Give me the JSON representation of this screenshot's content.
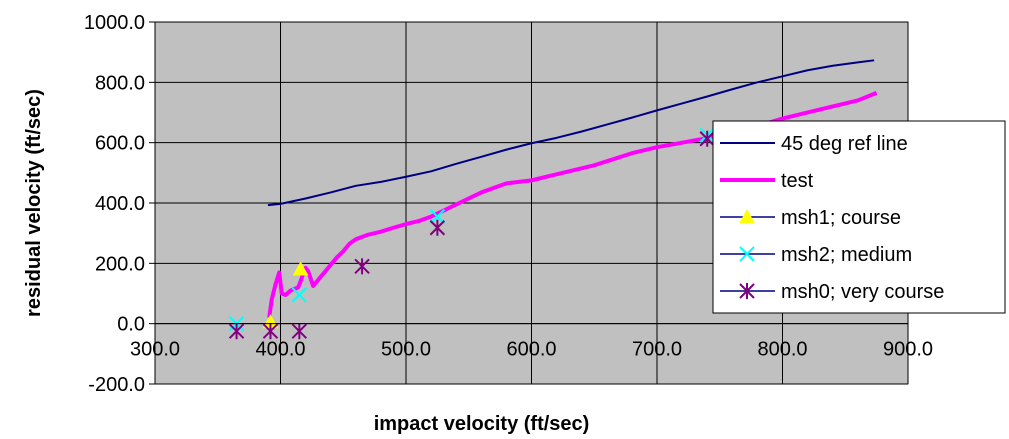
{
  "chart_data": {
    "type": "line",
    "title": "",
    "xlabel": "impact velocity (ft/sec)",
    "ylabel": "residual velocity (ft/sec)",
    "xlim": [
      300,
      900
    ],
    "ylim": [
      -200,
      1000
    ],
    "x_ticks": [
      "300.0",
      "400.0",
      "500.0",
      "600.0",
      "700.0",
      "800.0",
      "900.0"
    ],
    "y_ticks": [
      "-200.0",
      "0.0",
      "200.0",
      "400.0",
      "600.0",
      "800.0",
      "1000.0"
    ],
    "grid": true,
    "plot_background": "#C0C0C0",
    "legend_position": "right",
    "series": [
      {
        "name": "45 deg ref line",
        "style": "line",
        "color": "#000080",
        "x": [
          390,
          400,
          420,
          440,
          460,
          480,
          500,
          520,
          540,
          560,
          580,
          600,
          620,
          640,
          660,
          680,
          700,
          720,
          740,
          760,
          780,
          800,
          820,
          840,
          860,
          873
        ],
        "y": [
          393,
          397,
          415,
          435,
          457,
          470,
          487,
          505,
          530,
          553,
          577,
          598,
          616,
          637,
          660,
          683,
          707,
          730,
          753,
          777,
          800,
          820,
          840,
          855,
          866,
          873
        ]
      },
      {
        "name": "test",
        "style": "line",
        "color": "#FF00FF",
        "x": [
          391,
          393,
          396,
          399,
          401,
          404,
          408,
          411,
          414,
          416,
          418,
          420,
          422,
          424,
          426,
          428,
          431,
          434,
          437,
          440,
          445,
          450,
          455,
          460,
          470,
          480,
          490,
          500,
          510,
          520,
          530,
          540,
          560,
          580,
          600,
          620,
          650,
          680,
          700,
          720,
          740,
          760,
          780,
          800,
          830,
          860,
          875
        ],
        "y": [
          20,
          80,
          130,
          170,
          100,
          95,
          110,
          115,
          120,
          140,
          165,
          185,
          175,
          150,
          125,
          135,
          150,
          165,
          180,
          195,
          220,
          240,
          265,
          280,
          295,
          305,
          318,
          330,
          340,
          355,
          375,
          395,
          435,
          465,
          475,
          495,
          525,
          565,
          585,
          600,
          615,
          635,
          655,
          680,
          710,
          740,
          765
        ]
      },
      {
        "name": "msh1; course",
        "style": "marker",
        "marker": "triangle",
        "color": "#FFFF00",
        "x": [
          392,
          416
        ],
        "y": [
          5,
          180
        ]
      },
      {
        "name": "msh2; medium",
        "style": "marker",
        "marker": "x",
        "color": "#00FFFF",
        "x": [
          365,
          415,
          525,
          740
        ],
        "y": [
          0,
          95,
          355,
          625
        ]
      },
      {
        "name": "msh0; very course",
        "style": "marker",
        "marker": "asterisk",
        "color": "#800080",
        "x": [
          365,
          392,
          415,
          465,
          525,
          740
        ],
        "y": [
          -25,
          -25,
          -25,
          190,
          318,
          613
        ]
      }
    ]
  }
}
